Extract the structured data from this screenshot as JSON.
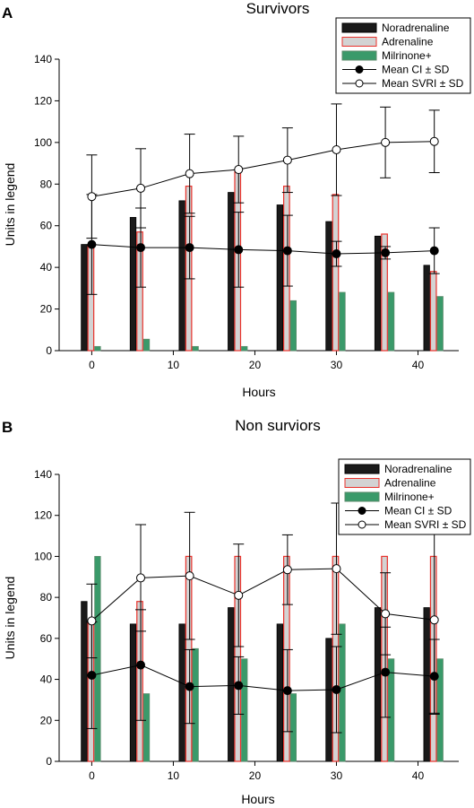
{
  "chart_data": [
    {
      "panel_label": "A",
      "type": "bar",
      "title": "Survivors",
      "xlabel": "Hours",
      "ylabel": "Units in legend",
      "xlim": [
        -4,
        45
      ],
      "ylim": [
        0,
        140
      ],
      "xticks": [
        0,
        10,
        20,
        30,
        40
      ],
      "yticks": [
        0,
        20,
        40,
        60,
        80,
        100,
        120,
        140
      ],
      "legend_position": "top-right",
      "bar_x": [
        0,
        6,
        12,
        18,
        24,
        30,
        36,
        42
      ],
      "bar_series": [
        {
          "name": "Noradrenaline",
          "color": "#1a1a1a",
          "edge": "#000000",
          "values": [
            51,
            64,
            72,
            76,
            70,
            62,
            55,
            41
          ]
        },
        {
          "name": "Adrenaline",
          "color": "#d3d3d3",
          "edge": "#e8312b",
          "values": [
            51,
            57,
            79,
            86,
            79,
            75,
            56,
            38
          ]
        },
        {
          "name": "Milrinone+",
          "color": "#3a9a6a",
          "edge": "#5a8a6a",
          "values": [
            2,
            5.5,
            2,
            2,
            24,
            28,
            28,
            26
          ]
        }
      ],
      "line_series": [
        {
          "name": "Mean CI ± SD",
          "marker": "filled",
          "x": [
            0,
            6,
            12,
            18,
            24,
            30,
            36,
            42
          ],
          "values": [
            51,
            49.5,
            49.5,
            48.5,
            48,
            46.5,
            47,
            48
          ],
          "sd": [
            24,
            19,
            15,
            18,
            17,
            6,
            3,
            11
          ]
        },
        {
          "name": "Mean SVRI ± SD",
          "marker": "open",
          "x": [
            0,
            6,
            12,
            18,
            24,
            30,
            36,
            42
          ],
          "values": [
            74,
            78,
            85,
            87,
            91.5,
            96.5,
            100,
            100.5
          ],
          "sd": [
            20,
            19,
            19,
            16,
            15.5,
            22,
            17,
            15
          ]
        }
      ]
    },
    {
      "panel_label": "B",
      "type": "bar",
      "title": "Non surviors",
      "xlabel": "Hours",
      "ylabel": "Units in legend",
      "xlim": [
        -4,
        45
      ],
      "ylim": [
        0,
        140
      ],
      "xticks": [
        0,
        10,
        20,
        30,
        40
      ],
      "yticks": [
        0,
        20,
        40,
        60,
        80,
        100,
        120,
        140
      ],
      "legend_position": "top-right",
      "bar_x": [
        0,
        6,
        12,
        18,
        24,
        30,
        36,
        42
      ],
      "bar_series": [
        {
          "name": "Noradrenaline",
          "color": "#1a1a1a",
          "edge": "#000000",
          "values": [
            78,
            67,
            67,
            75,
            67,
            60,
            75,
            75
          ]
        },
        {
          "name": "Adrenaline",
          "color": "#d3d3d3",
          "edge": "#e8312b",
          "values": [
            68,
            78,
            100,
            100,
            100,
            100,
            100,
            100
          ]
        },
        {
          "name": "Milrinone+",
          "color": "#3a9a6a",
          "edge": "#5a8a6a",
          "values": [
            100,
            33,
            55,
            50,
            33,
            67,
            50,
            50
          ]
        }
      ],
      "line_series": [
        {
          "name": "Mean CI ± SD",
          "marker": "filled",
          "x": [
            0,
            6,
            12,
            18,
            24,
            30,
            36,
            42
          ],
          "values": [
            42,
            47,
            36.5,
            37,
            34.5,
            35,
            43.5,
            41.5
          ],
          "sd": [
            26,
            27,
            18,
            14,
            20,
            21,
            22,
            18
          ]
        },
        {
          "name": "Mean SVRI ± SD",
          "marker": "open",
          "x": [
            0,
            6,
            12,
            18,
            24,
            30,
            36,
            42
          ],
          "values": [
            68.5,
            89.5,
            90.5,
            81,
            93.5,
            94,
            72,
            69
          ],
          "sd": [
            18,
            26,
            31,
            25,
            17,
            32,
            20,
            46
          ]
        }
      ]
    }
  ]
}
